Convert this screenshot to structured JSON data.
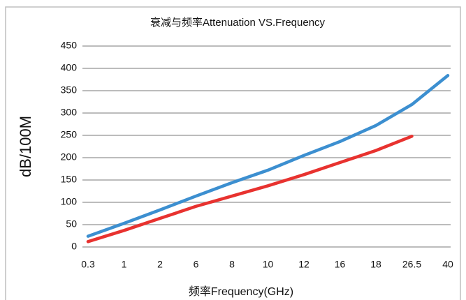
{
  "chart_data": {
    "type": "line",
    "title": "衰减与频率Attenuation VS.Frequency",
    "xlabel": "频率Frequency(GHz)",
    "ylabel": "dB/100M",
    "categories": [
      "0.3",
      "1",
      "2",
      "6",
      "8",
      "10",
      "12",
      "16",
      "18",
      "26.5",
      "40"
    ],
    "series": [
      {
        "color": "#3c8fd0",
        "values": [
          24,
          53,
          83,
          114,
          144,
          172,
          205,
          236,
          272,
          319,
          384
        ]
      },
      {
        "color": "#e8322f",
        "values": [
          12,
          37,
          64,
          91,
          114,
          137,
          162,
          189,
          216,
          248,
          null
        ]
      }
    ],
    "ylim": [
      0,
      450
    ],
    "yticks": [
      0,
      50,
      100,
      150,
      200,
      250,
      300,
      350,
      400,
      450
    ],
    "grid": true
  }
}
